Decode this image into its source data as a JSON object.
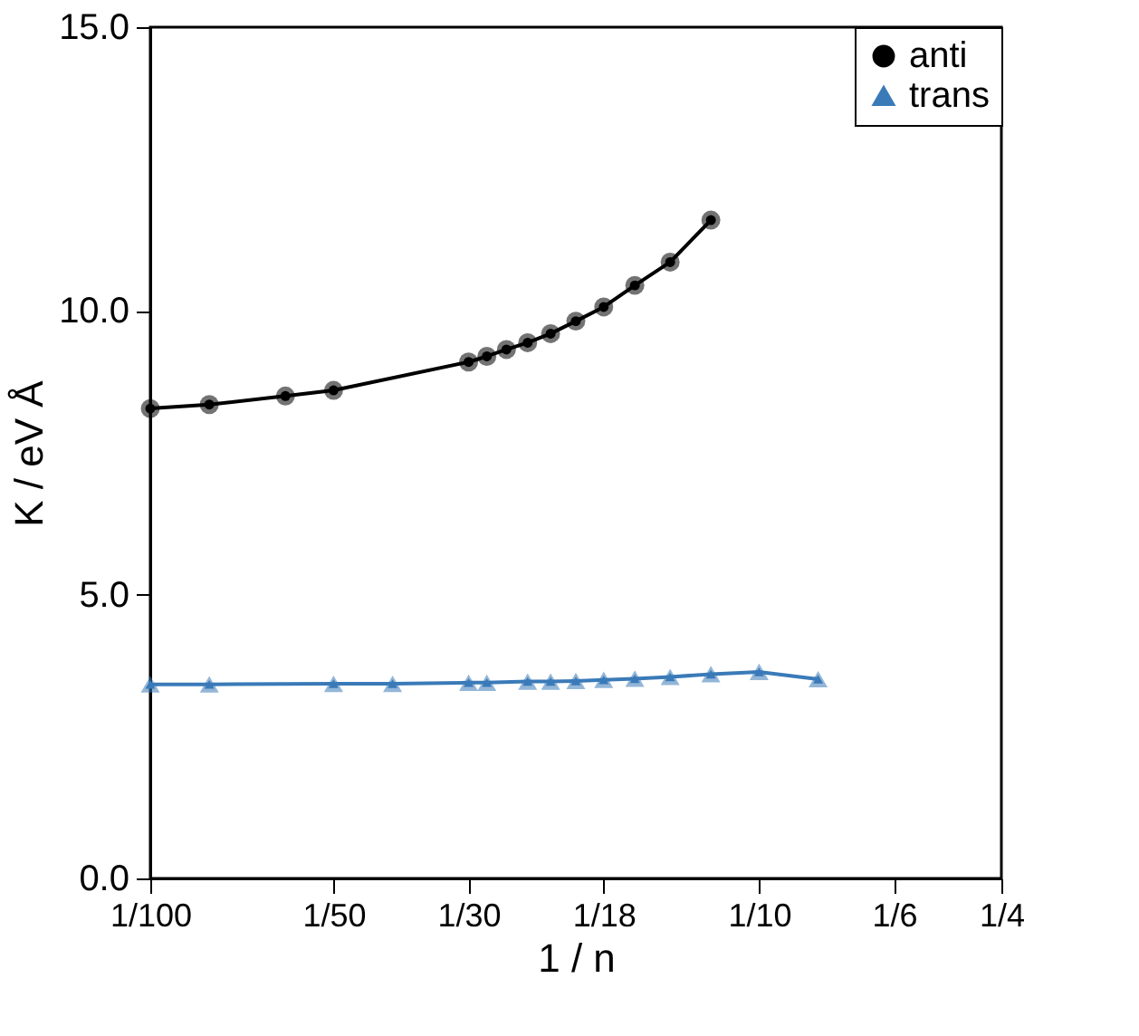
{
  "chart_data": {
    "type": "line",
    "xlabel": "1 / n",
    "ylabel": "K / eV Å",
    "log": "x",
    "xlim": [
      0.01,
      0.25
    ],
    "xticks": [
      {
        "value": 0.01,
        "label": "1/100"
      },
      {
        "value": 0.02,
        "label": "1/50"
      },
      {
        "value": 0.03333,
        "label": "1/30"
      },
      {
        "value": 0.05556,
        "label": "1/18"
      },
      {
        "value": 0.1,
        "label": "1/10"
      },
      {
        "value": 0.16667,
        "label": "1/6"
      },
      {
        "value": 0.25,
        "label": "1/4"
      }
    ],
    "ylim": [
      0,
      15
    ],
    "yticks": [
      {
        "value": 0,
        "label": "0.0"
      },
      {
        "value": 5,
        "label": "5.0"
      },
      {
        "value": 10,
        "label": "10.0"
      },
      {
        "value": 15,
        "label": "15.0"
      }
    ],
    "grid": false,
    "legend": "top right",
    "line_style": "solid",
    "series": [
      {
        "name": "anti",
        "color": "#000000",
        "marker": "circle",
        "x": [
          0.01,
          0.0125,
          0.01667,
          0.02,
          0.03333,
          0.03571,
          0.03846,
          0.04167,
          0.04545,
          0.05,
          0.05556,
          0.0625,
          0.07143,
          0.08333
        ],
        "values": [
          8.28,
          8.35,
          8.5,
          8.6,
          9.1,
          9.2,
          9.32,
          9.44,
          9.6,
          9.82,
          10.07,
          10.45,
          10.86,
          11.6
        ]
      },
      {
        "name": "trans",
        "color": "#3a7ab8",
        "marker": "triangle",
        "x": [
          0.01,
          0.0125,
          0.02,
          0.025,
          0.03333,
          0.03571,
          0.04167,
          0.04545,
          0.05,
          0.05556,
          0.0625,
          0.07143,
          0.08333,
          0.1,
          0.125
        ],
        "values": [
          3.42,
          3.42,
          3.43,
          3.43,
          3.45,
          3.45,
          3.47,
          3.47,
          3.48,
          3.5,
          3.52,
          3.55,
          3.6,
          3.64,
          3.51
        ]
      }
    ]
  }
}
